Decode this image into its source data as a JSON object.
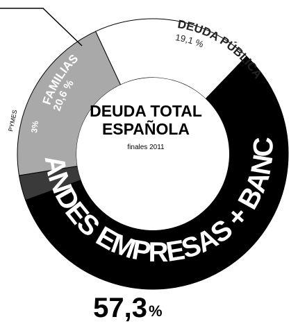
{
  "chart_data": {
    "type": "pie",
    "title": "DEUDA TOTAL ESPAÑOLA",
    "subtitle": "finales 2011",
    "slices": [
      {
        "label": "DEUDA PÚBLICA",
        "value": 19.1,
        "value_label": "19,1 %",
        "color": "#ffffff"
      },
      {
        "label": "GRANDES EMPRESAS + BANCOS",
        "value": 57.3,
        "value_label": "57,3",
        "value_unit": "%",
        "color": "#000000"
      },
      {
        "label": "PYMES",
        "value": 3,
        "value_label": "3%",
        "color": "#3a3a3a"
      },
      {
        "label": "FAMILIAS",
        "value": 20.6,
        "value_label": "20,6 %",
        "color": "#a9a9a9"
      }
    ]
  }
}
